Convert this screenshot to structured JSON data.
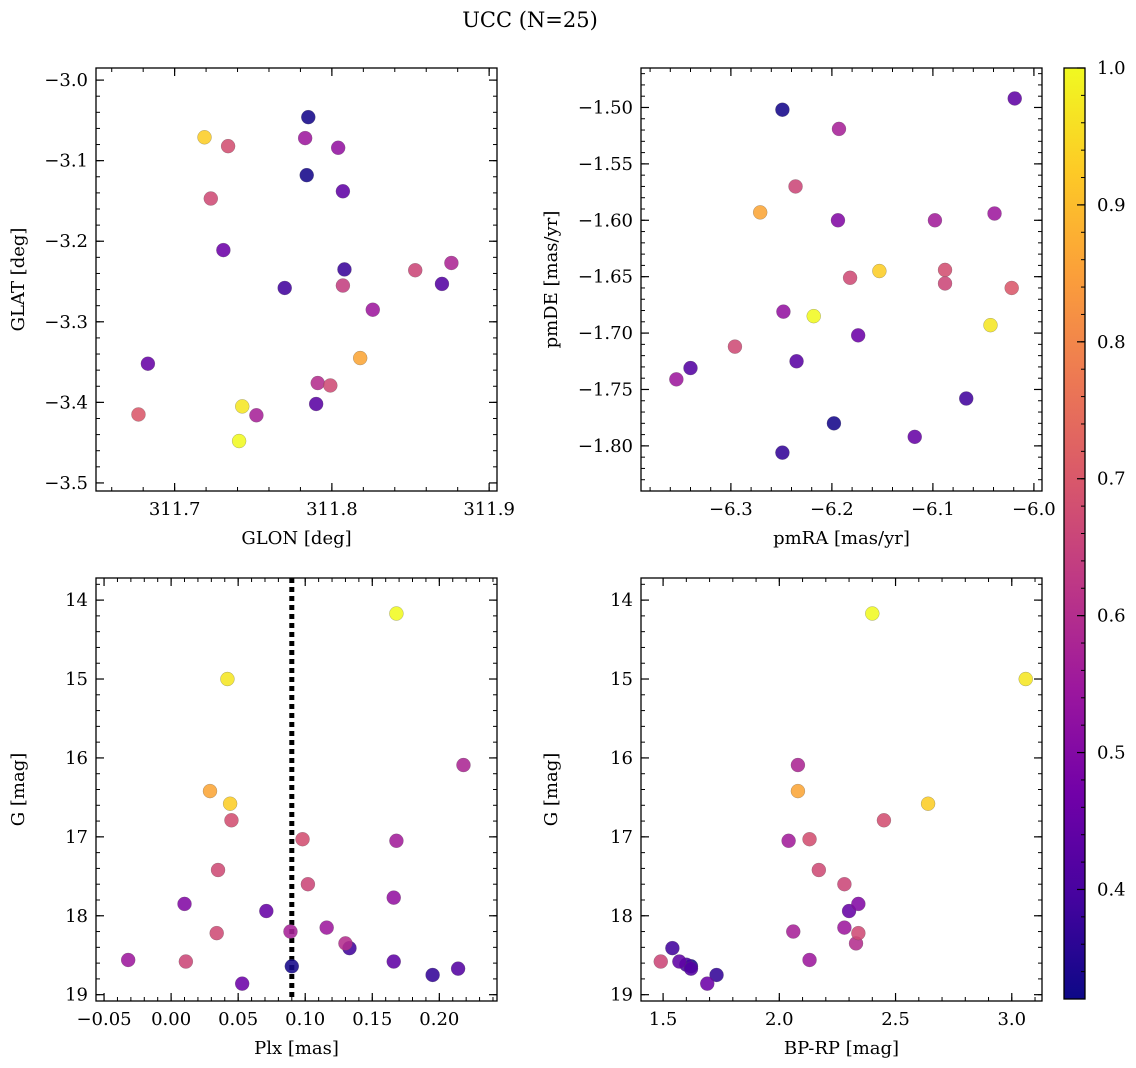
{
  "figure": {
    "title": "UCC (N=25)"
  },
  "colormap": {
    "name": "plasma",
    "range": [
      0.32,
      1.0
    ],
    "ticks": [
      0.4,
      0.5,
      0.6,
      0.7,
      0.8,
      0.9,
      1.0
    ],
    "tick_labels": [
      "0.4",
      "0.5",
      "0.6",
      "0.7",
      "0.8",
      "0.9",
      "1.0"
    ],
    "stops": [
      "#0d0887",
      "#46039f",
      "#7201a8",
      "#9c179e",
      "#bd3786",
      "#d8576b",
      "#ed7953",
      "#fb9f3a",
      "#fdca26",
      "#f0f921"
    ]
  },
  "chart_data": [
    {
      "type": "scatter",
      "id": "galactic",
      "xlabel": "GLON [deg]",
      "ylabel": "GLAT [deg]",
      "xlim": [
        311.65,
        311.905
      ],
      "ylim": [
        -3.51,
        -2.985
      ],
      "xticks": [
        311.7,
        311.8,
        311.9
      ],
      "xtick_labels": [
        "311.7",
        "311.8",
        "311.9"
      ],
      "yticks": [
        -3.5,
        -3.4,
        -3.3,
        -3.2,
        -3.1,
        -3.0
      ],
      "ytick_labels": [
        "−3.5",
        "−3.4",
        "−3.3",
        "−3.2",
        "−3.1",
        "−3.0"
      ],
      "x_minor_step": 0.02,
      "y_minor_step": 0.02,
      "y_inverted": false,
      "reference_line": null,
      "points": [
        {
          "x": 311.785,
          "y": -3.046,
          "c": 0.33
        },
        {
          "x": 311.719,
          "y": -3.071,
          "c": 0.93
        },
        {
          "x": 311.734,
          "y": -3.082,
          "c": 0.68
        },
        {
          "x": 311.783,
          "y": -3.072,
          "c": 0.55
        },
        {
          "x": 311.804,
          "y": -3.084,
          "c": 0.53
        },
        {
          "x": 311.784,
          "y": -3.118,
          "c": 0.33
        },
        {
          "x": 311.807,
          "y": -3.138,
          "c": 0.44
        },
        {
          "x": 311.723,
          "y": -3.147,
          "c": 0.67
        },
        {
          "x": 311.731,
          "y": -3.211,
          "c": 0.46
        },
        {
          "x": 311.808,
          "y": -3.235,
          "c": 0.38
        },
        {
          "x": 311.853,
          "y": -3.236,
          "c": 0.66
        },
        {
          "x": 311.876,
          "y": -3.227,
          "c": 0.58
        },
        {
          "x": 311.77,
          "y": -3.258,
          "c": 0.39
        },
        {
          "x": 311.807,
          "y": -3.255,
          "c": 0.64
        },
        {
          "x": 311.87,
          "y": -3.253,
          "c": 0.42
        },
        {
          "x": 311.826,
          "y": -3.285,
          "c": 0.55
        },
        {
          "x": 311.683,
          "y": -3.352,
          "c": 0.45
        },
        {
          "x": 311.818,
          "y": -3.345,
          "c": 0.86
        },
        {
          "x": 311.791,
          "y": -3.376,
          "c": 0.6
        },
        {
          "x": 311.799,
          "y": -3.379,
          "c": 0.67
        },
        {
          "x": 311.743,
          "y": -3.405,
          "c": 0.97
        },
        {
          "x": 311.752,
          "y": -3.416,
          "c": 0.57
        },
        {
          "x": 311.79,
          "y": -3.402,
          "c": 0.43
        },
        {
          "x": 311.677,
          "y": -3.415,
          "c": 0.7
        },
        {
          "x": 311.741,
          "y": -3.448,
          "c": 1.0
        }
      ]
    },
    {
      "type": "scatter",
      "id": "proper-motion",
      "xlabel": "pmRA [mas/yr]",
      "ylabel": "pmDE [mas/yr]",
      "xlim": [
        -6.389,
        -5.992
      ],
      "ylim": [
        -1.84,
        -1.465
      ],
      "xticks": [
        -6.3,
        -6.2,
        -6.1,
        -6.0
      ],
      "xtick_labels": [
        "−6.3",
        "−6.2",
        "−6.1",
        "−6.0"
      ],
      "yticks": [
        -1.8,
        -1.75,
        -1.7,
        -1.65,
        -1.6,
        -1.55,
        -1.5
      ],
      "ytick_labels": [
        "−1.80",
        "−1.75",
        "−1.70",
        "−1.65",
        "−1.60",
        "−1.55",
        "−1.50"
      ],
      "x_minor_step": 0.02,
      "y_minor_step": 0.01,
      "y_inverted": false,
      "reference_line": null,
      "points": [
        {
          "x": -6.249,
          "y": -1.502,
          "c": 0.33
        },
        {
          "x": -6.019,
          "y": -1.492,
          "c": 0.44
        },
        {
          "x": -6.193,
          "y": -1.519,
          "c": 0.57
        },
        {
          "x": -6.236,
          "y": -1.57,
          "c": 0.66
        },
        {
          "x": -6.271,
          "y": -1.593,
          "c": 0.86
        },
        {
          "x": -6.194,
          "y": -1.6,
          "c": 0.5
        },
        {
          "x": -6.098,
          "y": -1.6,
          "c": 0.56
        },
        {
          "x": -6.039,
          "y": -1.594,
          "c": 0.55
        },
        {
          "x": -6.153,
          "y": -1.645,
          "c": 0.93
        },
        {
          "x": -6.182,
          "y": -1.651,
          "c": 0.67
        },
        {
          "x": -6.088,
          "y": -1.644,
          "c": 0.68
        },
        {
          "x": -6.088,
          "y": -1.656,
          "c": 0.66
        },
        {
          "x": -6.022,
          "y": -1.66,
          "c": 0.7
        },
        {
          "x": -6.248,
          "y": -1.681,
          "c": 0.53
        },
        {
          "x": -6.218,
          "y": -1.685,
          "c": 1.0
        },
        {
          "x": -6.043,
          "y": -1.693,
          "c": 0.97
        },
        {
          "x": -6.174,
          "y": -1.702,
          "c": 0.46
        },
        {
          "x": -6.296,
          "y": -1.712,
          "c": 0.67
        },
        {
          "x": -6.235,
          "y": -1.725,
          "c": 0.43
        },
        {
          "x": -6.34,
          "y": -1.731,
          "c": 0.42
        },
        {
          "x": -6.354,
          "y": -1.741,
          "c": 0.55
        },
        {
          "x": -6.067,
          "y": -1.758,
          "c": 0.39
        },
        {
          "x": -6.198,
          "y": -1.78,
          "c": 0.33
        },
        {
          "x": -6.118,
          "y": -1.792,
          "c": 0.45
        },
        {
          "x": -6.249,
          "y": -1.806,
          "c": 0.37
        }
      ]
    },
    {
      "type": "scatter",
      "id": "plx-g",
      "xlabel": "Plx [mas]",
      "ylabel": "G [mag]",
      "xlim": [
        -0.056,
        0.243
      ],
      "ylim": [
        13.72,
        19.08
      ],
      "xticks": [
        -0.05,
        0.0,
        0.05,
        0.1,
        0.15,
        0.2
      ],
      "xtick_labels": [
        "−0.05",
        "0.00",
        "0.05",
        "0.10",
        "0.15",
        "0.20"
      ],
      "yticks": [
        14,
        15,
        16,
        17,
        18,
        19
      ],
      "ytick_labels": [
        "14",
        "15",
        "16",
        "17",
        "18",
        "19"
      ],
      "x_minor_step": 0.01,
      "y_minor_step": 0.2,
      "y_inverted": true,
      "reference_line": {
        "x": 0.09,
        "style": "dotted"
      },
      "points": [
        {
          "x": 0.168,
          "y": 14.17,
          "c": 1.0
        },
        {
          "x": 0.042,
          "y": 15.0,
          "c": 0.97
        },
        {
          "x": 0.218,
          "y": 16.09,
          "c": 0.58
        },
        {
          "x": 0.029,
          "y": 16.42,
          "c": 0.86
        },
        {
          "x": 0.044,
          "y": 16.58,
          "c": 0.93
        },
        {
          "x": 0.045,
          "y": 16.79,
          "c": 0.68
        },
        {
          "x": 0.098,
          "y": 17.03,
          "c": 0.68
        },
        {
          "x": 0.168,
          "y": 17.05,
          "c": 0.56
        },
        {
          "x": 0.035,
          "y": 17.42,
          "c": 0.67
        },
        {
          "x": 0.102,
          "y": 17.6,
          "c": 0.66
        },
        {
          "x": 0.166,
          "y": 17.77,
          "c": 0.53
        },
        {
          "x": 0.01,
          "y": 17.85,
          "c": 0.5
        },
        {
          "x": 0.071,
          "y": 17.94,
          "c": 0.45
        },
        {
          "x": 0.116,
          "y": 18.15,
          "c": 0.55
        },
        {
          "x": 0.089,
          "y": 18.2,
          "c": 0.57
        },
        {
          "x": 0.034,
          "y": 18.22,
          "c": 0.67
        },
        {
          "x": 0.13,
          "y": 18.35,
          "c": 0.6
        },
        {
          "x": 0.133,
          "y": 18.41,
          "c": 0.39
        },
        {
          "x": -0.032,
          "y": 18.56,
          "c": 0.55
        },
        {
          "x": 0.011,
          "y": 18.58,
          "c": 0.66
        },
        {
          "x": 0.166,
          "y": 18.58,
          "c": 0.44
        },
        {
          "x": 0.214,
          "y": 18.67,
          "c": 0.42
        },
        {
          "x": 0.09,
          "y": 18.64,
          "c": 0.33
        },
        {
          "x": 0.195,
          "y": 18.75,
          "c": 0.37
        },
        {
          "x": 0.053,
          "y": 18.86,
          "c": 0.46
        }
      ]
    },
    {
      "type": "scatter",
      "id": "cmd",
      "xlabel": "BP-RP [mag]",
      "ylabel": "G [mag]",
      "xlim": [
        1.405,
        3.13
      ],
      "ylim": [
        13.72,
        19.08
      ],
      "xticks": [
        1.5,
        2.0,
        2.5,
        3.0
      ],
      "xtick_labels": [
        "1.5",
        "2.0",
        "2.5",
        "3.0"
      ],
      "yticks": [
        14,
        15,
        16,
        17,
        18,
        19
      ],
      "ytick_labels": [
        "14",
        "15",
        "16",
        "17",
        "18",
        "19"
      ],
      "x_minor_step": 0.1,
      "y_minor_step": 0.2,
      "y_inverted": true,
      "reference_line": null,
      "points": [
        {
          "x": 2.4,
          "y": 14.17,
          "c": 1.0
        },
        {
          "x": 3.06,
          "y": 15.0,
          "c": 0.97
        },
        {
          "x": 2.08,
          "y": 16.09,
          "c": 0.58
        },
        {
          "x": 2.08,
          "y": 16.42,
          "c": 0.86
        },
        {
          "x": 2.64,
          "y": 16.58,
          "c": 0.93
        },
        {
          "x": 2.45,
          "y": 16.79,
          "c": 0.68
        },
        {
          "x": 2.04,
          "y": 17.05,
          "c": 0.56
        },
        {
          "x": 2.13,
          "y": 17.03,
          "c": 0.68
        },
        {
          "x": 2.17,
          "y": 17.42,
          "c": 0.67
        },
        {
          "x": 2.28,
          "y": 17.6,
          "c": 0.66
        },
        {
          "x": 2.34,
          "y": 17.85,
          "c": 0.5
        },
        {
          "x": 2.3,
          "y": 17.94,
          "c": 0.45
        },
        {
          "x": 2.28,
          "y": 18.15,
          "c": 0.55
        },
        {
          "x": 2.06,
          "y": 18.2,
          "c": 0.57
        },
        {
          "x": 2.34,
          "y": 18.22,
          "c": 0.67
        },
        {
          "x": 2.33,
          "y": 18.35,
          "c": 0.6
        },
        {
          "x": 1.54,
          "y": 18.41,
          "c": 0.39
        },
        {
          "x": 2.13,
          "y": 18.56,
          "c": 0.55
        },
        {
          "x": 1.49,
          "y": 18.58,
          "c": 0.66
        },
        {
          "x": 1.57,
          "y": 18.58,
          "c": 0.44
        },
        {
          "x": 1.62,
          "y": 18.64,
          "c": 0.33
        },
        {
          "x": 1.62,
          "y": 18.67,
          "c": 0.42
        },
        {
          "x": 1.73,
          "y": 18.75,
          "c": 0.37
        },
        {
          "x": 1.69,
          "y": 18.86,
          "c": 0.46
        },
        {
          "x": 1.6,
          "y": 18.62,
          "c": 0.4
        }
      ]
    }
  ]
}
